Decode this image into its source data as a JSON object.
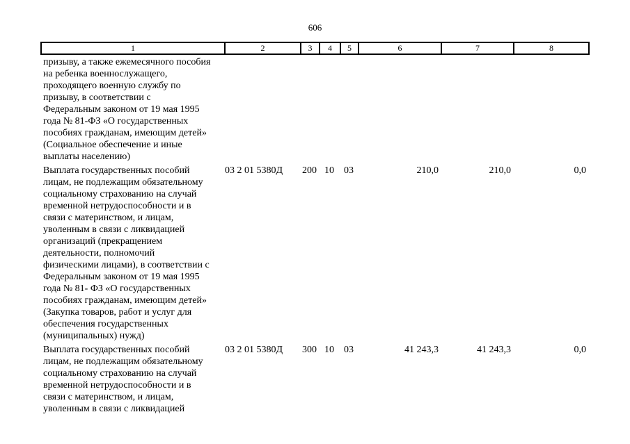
{
  "page": {
    "number": "606"
  },
  "table": {
    "header": [
      "1",
      "2",
      "3",
      "4",
      "5",
      "6",
      "7",
      "8"
    ],
    "rows": [
      {
        "name_lines": [
          "призыву, а также ежемесячного пособия",
          "на ребенка военнослужащего,",
          "проходящего военную службу по",
          "призыву, в соответствии с",
          "Федеральным законом от 19 мая 1995",
          "года № 81-ФЗ «О государственных",
          "пособиях гражданам, имеющим детей»",
          "(Социальное обеспечение и иные",
          "выплаты населению)"
        ],
        "values": [
          "",
          "",
          "",
          "",
          "",
          "",
          ""
        ]
      },
      {
        "name_lines": [
          "Выплата государственных пособий",
          "лицам, не подлежащим обязательному",
          "социальному страхованию на случай",
          "временной нетрудоспособности и в",
          "связи с материнством, и лицам,",
          "уволенным в связи с ликвидацией",
          "организаций (прекращением",
          "деятельности, полномочий",
          "физическими лицами), в соответствии с",
          "Федеральным законом от 19 мая 1995",
          "года № 81- ФЗ «О государственных",
          "пособиях гражданам, имеющим детей»",
          "(Закупка товаров, работ и услуг для",
          "обеспечения государственных",
          "(муниципальных) нужд)"
        ],
        "values": [
          "03 2 01 5380Д",
          "200",
          "10",
          "03",
          "210,0",
          "210,0",
          "0,0"
        ]
      },
      {
        "name_lines": [
          "Выплата государственных пособий",
          "лицам, не подлежащим обязательному",
          "социальному страхованию на случай",
          "временной нетрудоспособности и в",
          "связи с материнством, и лицам,",
          "уволенным в связи с ликвидацией"
        ],
        "values": [
          "03 2 01 5380Д",
          "300",
          "10",
          "03",
          "41 243,3",
          "41 243,3",
          "0,0"
        ]
      }
    ]
  }
}
